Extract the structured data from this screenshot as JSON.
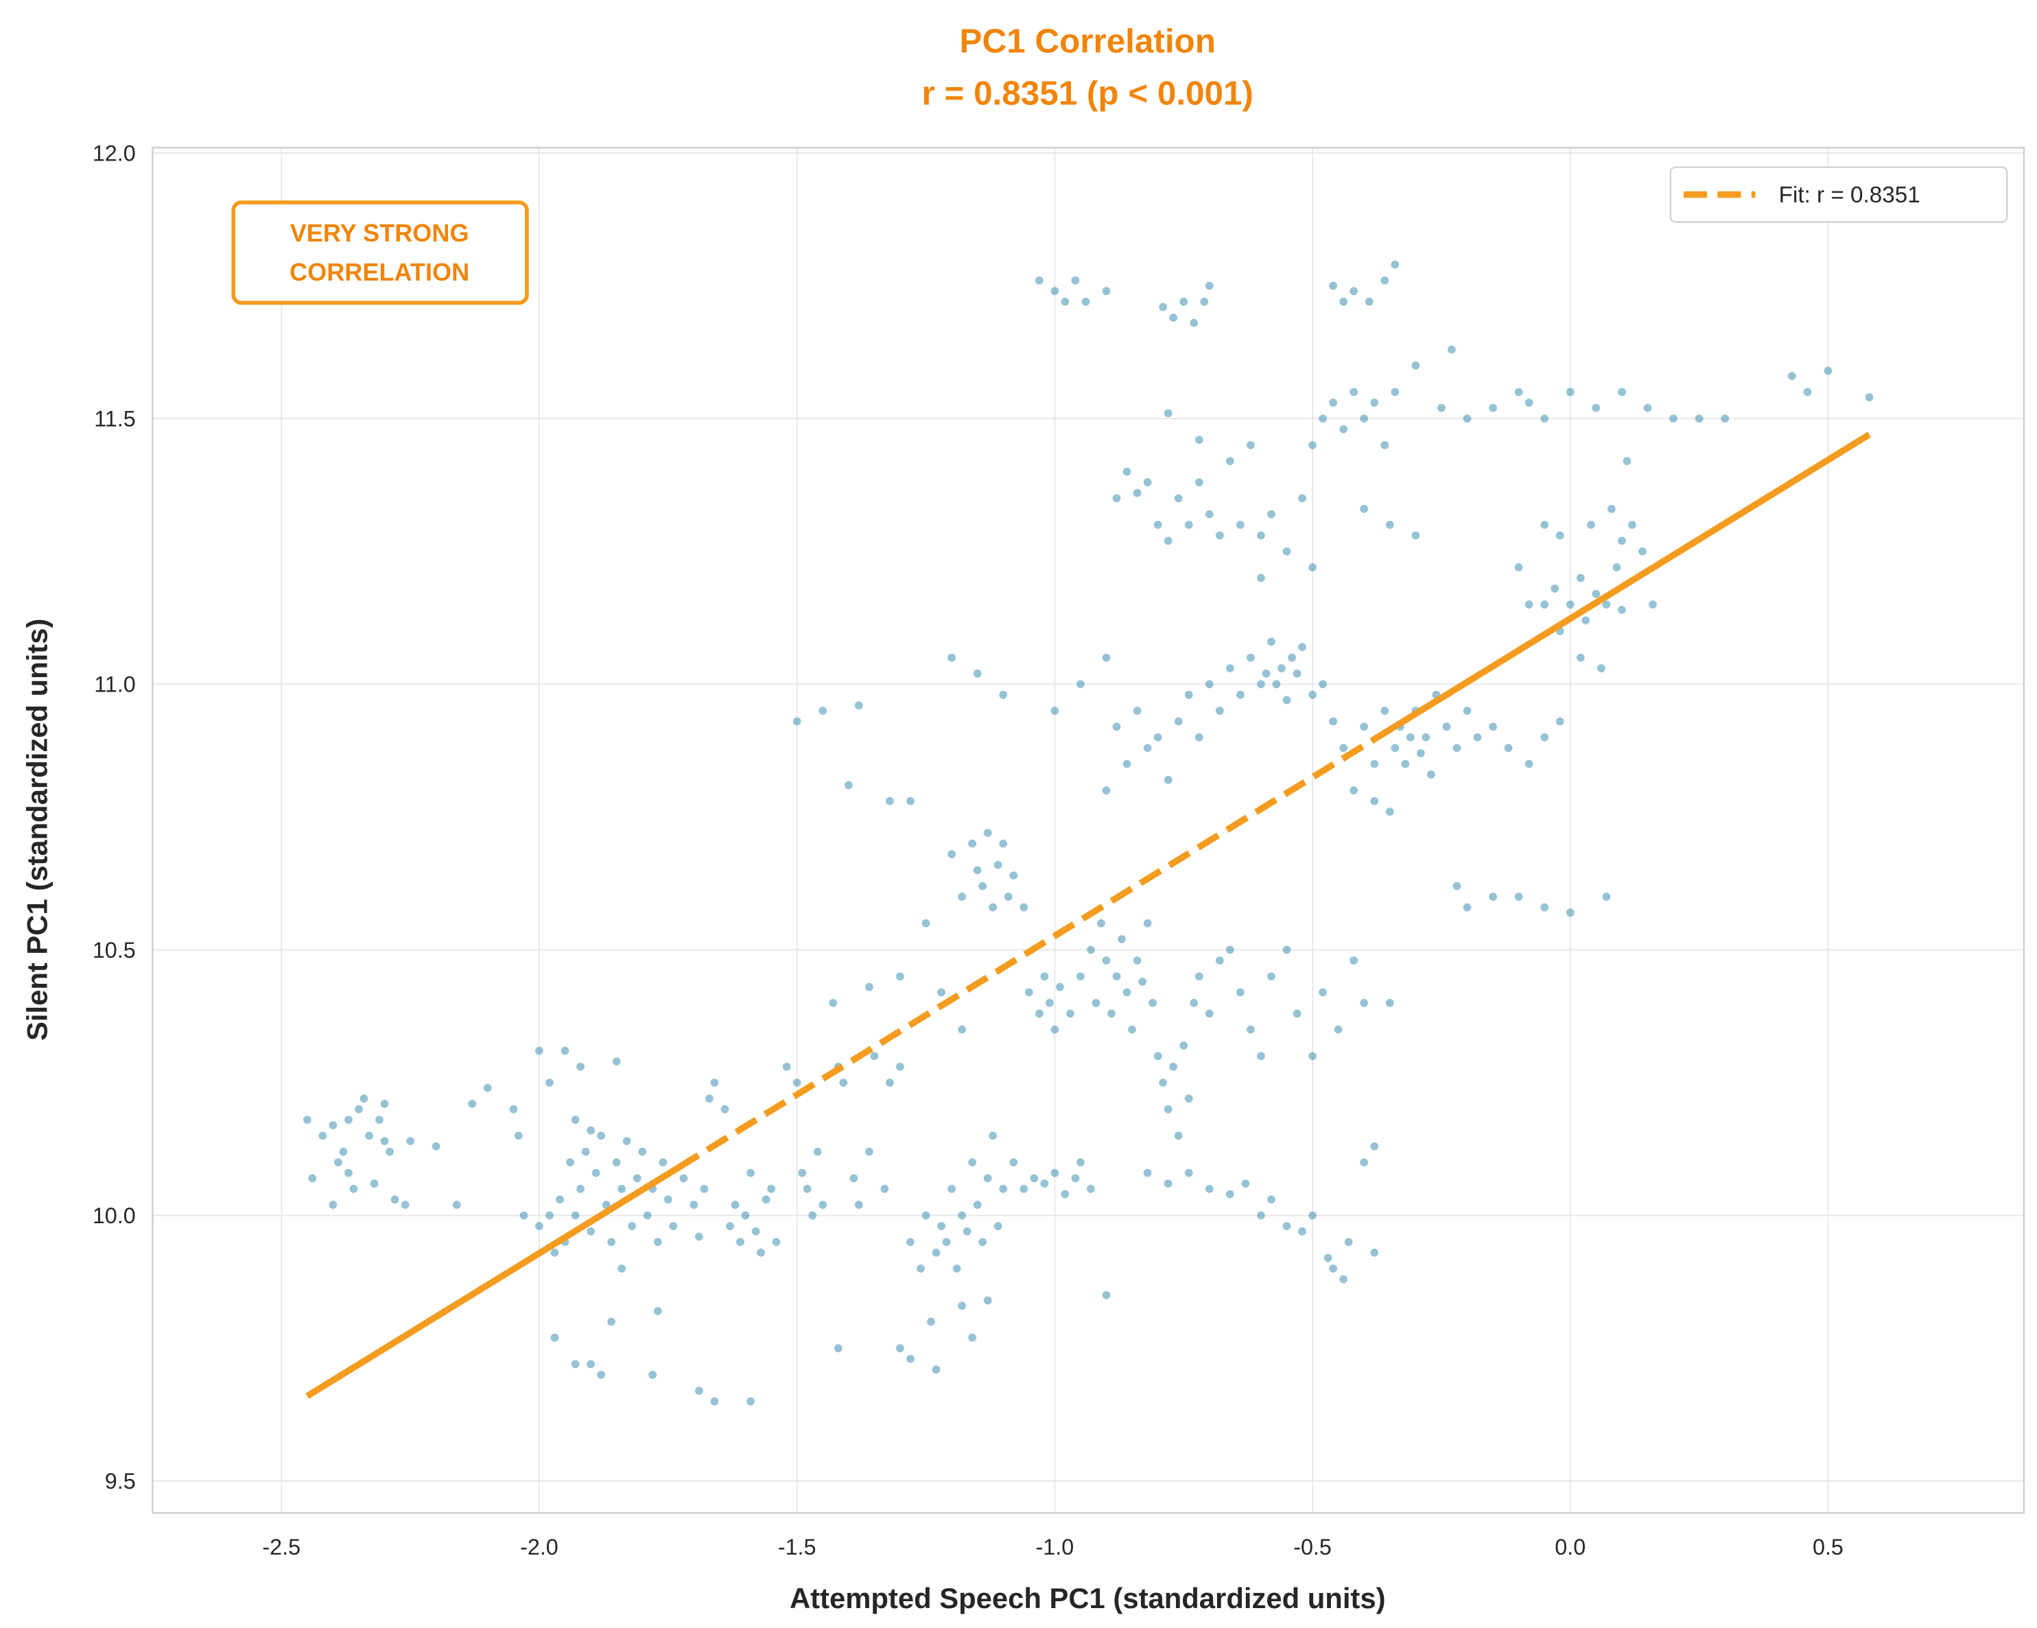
{
  "chart_data": {
    "type": "scatter",
    "title": "PC1 Correlation",
    "subtitle": "r = 0.8351 (p < 0.001)",
    "xlabel": "Attempted Speech PC1 (standardized units)",
    "ylabel": "Silent PC1 (standardized units)",
    "xlim": [
      -2.75,
      0.88
    ],
    "ylim": [
      9.44,
      12.01
    ],
    "xticks": [
      "-2.5",
      "-2.0",
      "-1.5",
      "-1.0",
      "-0.5",
      "0.0",
      "0.5"
    ],
    "yticks": [
      "9.5",
      "10.0",
      "10.5",
      "11.0",
      "11.5",
      "12.0"
    ],
    "grid": true,
    "legend": {
      "placement": "top-right",
      "entries": [
        "Fit: r = 0.8351"
      ]
    },
    "annotation": [
      "VERY STRONG",
      "CORRELATION"
    ],
    "colors": {
      "points": "#2E86AB",
      "fit": "#F39C1F",
      "title": "#F0850A"
    },
    "fit_line": {
      "x": [
        -2.45,
        0.58
      ],
      "y": [
        9.66,
        11.47
      ],
      "style": "dashed",
      "r": 0.8351
    },
    "points": [
      [
        -2.45,
        10.18
      ],
      [
        -2.44,
        10.07
      ],
      [
        -2.42,
        10.15
      ],
      [
        -2.4,
        10.17
      ],
      [
        -2.38,
        10.12
      ],
      [
        -2.37,
        10.18
      ],
      [
        -2.35,
        10.2
      ],
      [
        -2.34,
        10.22
      ],
      [
        -2.33,
        10.15
      ],
      [
        -2.31,
        10.18
      ],
      [
        -2.3,
        10.21
      ],
      [
        -2.29,
        10.12
      ],
      [
        -2.36,
        10.05
      ],
      [
        -2.39,
        10.1
      ],
      [
        -2.4,
        10.02
      ],
      [
        -2.32,
        10.06
      ],
      [
        -2.28,
        10.03
      ],
      [
        -2.26,
        10.02
      ],
      [
        -2.3,
        10.14
      ],
      [
        -2.37,
        10.08
      ],
      [
        -2.25,
        10.14
      ],
      [
        -2.2,
        10.13
      ],
      [
        -2.16,
        10.02
      ],
      [
        -2.13,
        10.21
      ],
      [
        -2.1,
        10.24
      ],
      [
        -2.05,
        10.2
      ],
      [
        -2.04,
        10.15
      ],
      [
        -2.0,
        10.31
      ],
      [
        -1.98,
        10.25
      ],
      [
        -1.95,
        10.31
      ],
      [
        -1.92,
        10.28
      ],
      [
        -1.85,
        10.29
      ],
      [
        -2.0,
        9.98
      ],
      [
        -1.98,
        10.0
      ],
      [
        -1.96,
        10.03
      ],
      [
        -1.95,
        9.95
      ],
      [
        -1.94,
        10.1
      ],
      [
        -1.93,
        10.0
      ],
      [
        -1.92,
        10.05
      ],
      [
        -1.91,
        10.12
      ],
      [
        -1.9,
        9.97
      ],
      [
        -1.89,
        10.08
      ],
      [
        -1.88,
        10.15
      ],
      [
        -1.87,
        10.02
      ],
      [
        -1.86,
        9.95
      ],
      [
        -1.85,
        10.1
      ],
      [
        -1.84,
        10.05
      ],
      [
        -1.83,
        10.14
      ],
      [
        -1.82,
        9.98
      ],
      [
        -1.81,
        10.07
      ],
      [
        -1.8,
        10.12
      ],
      [
        -1.79,
        10.0
      ],
      [
        -1.78,
        10.05
      ],
      [
        -1.77,
        9.95
      ],
      [
        -1.76,
        10.1
      ],
      [
        -1.75,
        10.03
      ],
      [
        -1.74,
        9.98
      ],
      [
        -1.72,
        10.07
      ],
      [
        -1.7,
        10.02
      ],
      [
        -1.69,
        9.96
      ],
      [
        -1.68,
        10.05
      ],
      [
        -1.97,
        9.93
      ],
      [
        -1.93,
        10.18
      ],
      [
        -1.9,
        10.16
      ],
      [
        -2.03,
        10.0
      ],
      [
        -1.97,
        9.77
      ],
      [
        -1.93,
        9.72
      ],
      [
        -1.9,
        9.72
      ],
      [
        -1.88,
        9.7
      ],
      [
        -1.86,
        9.8
      ],
      [
        -1.84,
        9.9
      ],
      [
        -1.78,
        9.7
      ],
      [
        -1.77,
        9.82
      ],
      [
        -1.69,
        9.67
      ],
      [
        -1.66,
        9.65
      ],
      [
        -1.59,
        9.65
      ],
      [
        -1.67,
        10.22
      ],
      [
        -1.66,
        10.25
      ],
      [
        -1.64,
        10.2
      ],
      [
        -1.63,
        9.98
      ],
      [
        -1.62,
        10.02
      ],
      [
        -1.61,
        9.95
      ],
      [
        -1.6,
        10.0
      ],
      [
        -1.59,
        10.08
      ],
      [
        -1.58,
        9.97
      ],
      [
        -1.57,
        9.93
      ],
      [
        -1.56,
        10.03
      ],
      [
        -1.55,
        10.05
      ],
      [
        -1.54,
        9.95
      ],
      [
        -1.52,
        10.28
      ],
      [
        -1.5,
        10.25
      ],
      [
        -1.49,
        10.08
      ],
      [
        -1.48,
        10.05
      ],
      [
        -1.47,
        10.0
      ],
      [
        -1.46,
        10.12
      ],
      [
        -1.45,
        10.02
      ],
      [
        -1.43,
        10.4
      ],
      [
        -1.42,
        10.28
      ],
      [
        -1.41,
        10.25
      ],
      [
        -1.39,
        10.07
      ],
      [
        -1.38,
        10.02
      ],
      [
        -1.36,
        10.12
      ],
      [
        -1.35,
        10.3
      ],
      [
        -1.33,
        10.05
      ],
      [
        -1.32,
        10.25
      ],
      [
        -1.3,
        10.28
      ],
      [
        -1.42,
        9.75
      ],
      [
        -1.28,
        9.95
      ],
      [
        -1.26,
        9.9
      ],
      [
        -1.25,
        10.0
      ],
      [
        -1.24,
        9.8
      ],
      [
        -1.23,
        9.93
      ],
      [
        -1.22,
        9.98
      ],
      [
        -1.21,
        9.95
      ],
      [
        -1.2,
        10.05
      ],
      [
        -1.19,
        9.9
      ],
      [
        -1.18,
        10.0
      ],
      [
        -1.17,
        9.97
      ],
      [
        -1.16,
        10.1
      ],
      [
        -1.15,
        10.02
      ],
      [
        -1.14,
        9.95
      ],
      [
        -1.13,
        10.07
      ],
      [
        -1.12,
        10.15
      ],
      [
        -1.11,
        9.98
      ],
      [
        -1.1,
        10.05
      ],
      [
        -1.08,
        10.1
      ],
      [
        -1.06,
        10.05
      ],
      [
        -1.04,
        10.07
      ],
      [
        -1.02,
        10.06
      ],
      [
        -1.0,
        10.08
      ],
      [
        -0.98,
        10.04
      ],
      [
        -0.96,
        10.07
      ],
      [
        -0.95,
        10.1
      ],
      [
        -0.93,
        10.05
      ],
      [
        -1.3,
        9.75
      ],
      [
        -1.28,
        9.73
      ],
      [
        -1.23,
        9.71
      ],
      [
        -1.18,
        9.83
      ],
      [
        -1.16,
        9.77
      ],
      [
        -1.13,
        9.84
      ],
      [
        -0.9,
        9.85
      ],
      [
        -0.95,
        10.45
      ],
      [
        -0.93,
        10.5
      ],
      [
        -0.92,
        10.4
      ],
      [
        -0.91,
        10.55
      ],
      [
        -0.9,
        10.48
      ],
      [
        -0.89,
        10.38
      ],
      [
        -0.88,
        10.45
      ],
      [
        -0.87,
        10.52
      ],
      [
        -0.86,
        10.42
      ],
      [
        -0.85,
        10.35
      ],
      [
        -0.84,
        10.48
      ],
      [
        -0.83,
        10.44
      ],
      [
        -0.82,
        10.55
      ],
      [
        -0.81,
        10.4
      ],
      [
        -0.8,
        10.3
      ],
      [
        -0.79,
        10.25
      ],
      [
        -0.78,
        10.2
      ],
      [
        -0.77,
        10.28
      ],
      [
        -0.76,
        10.15
      ],
      [
        -0.75,
        10.32
      ],
      [
        -0.74,
        10.22
      ],
      [
        -0.73,
        10.4
      ],
      [
        -0.72,
        10.45
      ],
      [
        -0.7,
        10.38
      ],
      [
        -0.68,
        10.48
      ],
      [
        -0.66,
        10.5
      ],
      [
        -0.64,
        10.42
      ],
      [
        -0.62,
        10.35
      ],
      [
        -0.6,
        10.3
      ],
      [
        -0.58,
        10.45
      ],
      [
        -0.55,
        10.5
      ],
      [
        -0.53,
        10.38
      ],
      [
        -0.5,
        10.3
      ],
      [
        -0.48,
        10.42
      ],
      [
        -0.45,
        10.35
      ],
      [
        -0.42,
        10.48
      ],
      [
        -0.4,
        10.4
      ],
      [
        -0.35,
        10.4
      ],
      [
        -0.82,
        10.08
      ],
      [
        -0.78,
        10.06
      ],
      [
        -0.74,
        10.08
      ],
      [
        -0.7,
        10.05
      ],
      [
        -0.66,
        10.04
      ],
      [
        -0.63,
        10.06
      ],
      [
        -0.6,
        10.0
      ],
      [
        -0.58,
        10.03
      ],
      [
        -0.55,
        9.98
      ],
      [
        -0.52,
        9.97
      ],
      [
        -0.5,
        10.0
      ],
      [
        -0.47,
        9.92
      ],
      [
        -0.46,
        9.9
      ],
      [
        -0.44,
        9.88
      ],
      [
        -0.43,
        9.95
      ],
      [
        -0.38,
        9.93
      ],
      [
        -0.4,
        10.1
      ],
      [
        -0.38,
        10.13
      ],
      [
        -1.2,
        10.68
      ],
      [
        -1.18,
        10.6
      ],
      [
        -1.16,
        10.7
      ],
      [
        -1.15,
        10.65
      ],
      [
        -1.14,
        10.62
      ],
      [
        -1.13,
        10.72
      ],
      [
        -1.12,
        10.58
      ],
      [
        -1.11,
        10.66
      ],
      [
        -1.1,
        10.7
      ],
      [
        -1.09,
        10.6
      ],
      [
        -1.08,
        10.64
      ],
      [
        -1.06,
        10.58
      ],
      [
        -1.05,
        10.42
      ],
      [
        -1.03,
        10.38
      ],
      [
        -1.02,
        10.45
      ],
      [
        -1.01,
        10.4
      ],
      [
        -1.0,
        10.35
      ],
      [
        -0.99,
        10.43
      ],
      [
        -0.97,
        10.38
      ],
      [
        -1.25,
        10.55
      ],
      [
        -1.28,
        10.78
      ],
      [
        -1.32,
        10.78
      ],
      [
        -1.4,
        10.81
      ],
      [
        -1.36,
        10.43
      ],
      [
        -1.3,
        10.45
      ],
      [
        -1.22,
        10.42
      ],
      [
        -1.18,
        10.35
      ],
      [
        -0.9,
        10.8
      ],
      [
        -0.88,
        10.92
      ],
      [
        -0.86,
        10.85
      ],
      [
        -0.84,
        10.95
      ],
      [
        -0.82,
        10.88
      ],
      [
        -0.8,
        10.9
      ],
      [
        -0.78,
        10.82
      ],
      [
        -0.76,
        10.93
      ],
      [
        -0.74,
        10.98
      ],
      [
        -0.72,
        10.9
      ],
      [
        -0.7,
        11.0
      ],
      [
        -0.68,
        10.95
      ],
      [
        -0.66,
        11.03
      ],
      [
        -0.64,
        10.98
      ],
      [
        -0.62,
        11.05
      ],
      [
        -0.6,
        11.0
      ],
      [
        -0.59,
        11.02
      ],
      [
        -0.58,
        11.08
      ],
      [
        -0.57,
        11.0
      ],
      [
        -0.56,
        11.03
      ],
      [
        -0.55,
        10.97
      ],
      [
        -0.54,
        11.05
      ],
      [
        -0.53,
        11.02
      ],
      [
        -0.52,
        11.07
      ],
      [
        -0.5,
        10.98
      ],
      [
        -0.48,
        11.0
      ],
      [
        -0.46,
        10.93
      ],
      [
        -0.44,
        10.88
      ],
      [
        -0.4,
        10.92
      ],
      [
        -0.38,
        10.85
      ],
      [
        -0.36,
        10.95
      ],
      [
        -0.34,
        10.88
      ],
      [
        -0.33,
        10.92
      ],
      [
        -0.32,
        10.85
      ],
      [
        -0.31,
        10.9
      ],
      [
        -0.3,
        10.95
      ],
      [
        -0.29,
        10.87
      ],
      [
        -0.28,
        10.9
      ],
      [
        -0.27,
        10.83
      ],
      [
        -0.26,
        10.98
      ],
      [
        -0.24,
        10.92
      ],
      [
        -0.22,
        10.88
      ],
      [
        -0.2,
        10.95
      ],
      [
        -0.18,
        10.9
      ],
      [
        -0.15,
        10.92
      ],
      [
        -0.12,
        10.88
      ],
      [
        -0.08,
        10.85
      ],
      [
        -0.05,
        10.9
      ],
      [
        -0.02,
        10.93
      ],
      [
        -0.38,
        10.78
      ],
      [
        -0.35,
        10.76
      ],
      [
        -0.42,
        10.8
      ],
      [
        -0.22,
        10.62
      ],
      [
        -0.2,
        10.58
      ],
      [
        -0.15,
        10.6
      ],
      [
        -0.1,
        10.6
      ],
      [
        -0.05,
        10.58
      ],
      [
        0.0,
        10.57
      ],
      [
        0.07,
        10.6
      ],
      [
        -1.2,
        11.05
      ],
      [
        -1.15,
        11.02
      ],
      [
        -1.1,
        10.98
      ],
      [
        -1.0,
        10.95
      ],
      [
        -0.95,
        11.0
      ],
      [
        -0.9,
        11.05
      ],
      [
        -1.5,
        10.93
      ],
      [
        -1.45,
        10.95
      ],
      [
        -1.38,
        10.96
      ],
      [
        -0.05,
        11.15
      ],
      [
        -0.03,
        11.18
      ],
      [
        -0.02,
        11.1
      ],
      [
        0.0,
        11.15
      ],
      [
        0.02,
        11.2
      ],
      [
        0.03,
        11.12
      ],
      [
        0.05,
        11.17
      ],
      [
        0.07,
        11.15
      ],
      [
        0.09,
        11.22
      ],
      [
        0.1,
        11.27
      ],
      [
        0.12,
        11.3
      ],
      [
        0.14,
        11.25
      ],
      [
        0.08,
        11.33
      ],
      [
        0.04,
        11.3
      ],
      [
        -0.02,
        11.28
      ],
      [
        -0.05,
        11.3
      ],
      [
        0.1,
        11.14
      ],
      [
        0.16,
        11.15
      ],
      [
        0.02,
        11.05
      ],
      [
        0.06,
        11.03
      ],
      [
        -0.08,
        11.15
      ],
      [
        -0.1,
        11.22
      ],
      [
        0.11,
        11.42
      ],
      [
        -0.88,
        11.35
      ],
      [
        -0.86,
        11.4
      ],
      [
        -0.84,
        11.36
      ],
      [
        -0.82,
        11.38
      ],
      [
        -0.8,
        11.3
      ],
      [
        -0.78,
        11.27
      ],
      [
        -0.76,
        11.35
      ],
      [
        -0.74,
        11.3
      ],
      [
        -0.72,
        11.38
      ],
      [
        -0.7,
        11.32
      ],
      [
        -0.68,
        11.28
      ],
      [
        -0.66,
        11.42
      ],
      [
        -0.64,
        11.3
      ],
      [
        -0.62,
        11.45
      ],
      [
        -0.6,
        11.28
      ],
      [
        -0.58,
        11.32
      ],
      [
        -0.55,
        11.25
      ],
      [
        -0.52,
        11.35
      ],
      [
        -0.5,
        11.45
      ],
      [
        -0.48,
        11.5
      ],
      [
        -0.46,
        11.53
      ],
      [
        -0.44,
        11.48
      ],
      [
        -0.42,
        11.55
      ],
      [
        -0.4,
        11.5
      ],
      [
        -0.38,
        11.53
      ],
      [
        -0.36,
        11.45
      ],
      [
        -0.34,
        11.55
      ],
      [
        -0.3,
        11.6
      ],
      [
        -0.25,
        11.52
      ],
      [
        -0.2,
        11.5
      ],
      [
        -0.15,
        11.52
      ],
      [
        -0.1,
        11.55
      ],
      [
        -0.08,
        11.53
      ],
      [
        -0.05,
        11.5
      ],
      [
        0.0,
        11.55
      ],
      [
        0.05,
        11.52
      ],
      [
        0.1,
        11.55
      ],
      [
        0.15,
        11.52
      ],
      [
        0.2,
        11.5
      ],
      [
        0.25,
        11.5
      ],
      [
        0.3,
        11.5
      ],
      [
        0.43,
        11.58
      ],
      [
        0.46,
        11.55
      ],
      [
        0.5,
        11.59
      ],
      [
        0.58,
        11.54
      ],
      [
        -0.78,
        11.51
      ],
      [
        -0.72,
        11.46
      ],
      [
        -0.4,
        11.33
      ],
      [
        -0.35,
        11.3
      ],
      [
        -0.3,
        11.28
      ],
      [
        -0.6,
        11.2
      ],
      [
        -0.5,
        11.22
      ],
      [
        -1.03,
        11.76
      ],
      [
        -1.0,
        11.74
      ],
      [
        -0.98,
        11.72
      ],
      [
        -0.96,
        11.76
      ],
      [
        -0.94,
        11.72
      ],
      [
        -0.9,
        11.74
      ],
      [
        -0.79,
        11.71
      ],
      [
        -0.77,
        11.69
      ],
      [
        -0.75,
        11.72
      ],
      [
        -0.73,
        11.68
      ],
      [
        -0.71,
        11.72
      ],
      [
        -0.7,
        11.75
      ],
      [
        -0.46,
        11.75
      ],
      [
        -0.44,
        11.72
      ],
      [
        -0.42,
        11.74
      ],
      [
        -0.39,
        11.72
      ],
      [
        -0.36,
        11.76
      ],
      [
        -0.34,
        11.79
      ],
      [
        -0.23,
        11.63
      ]
    ]
  }
}
